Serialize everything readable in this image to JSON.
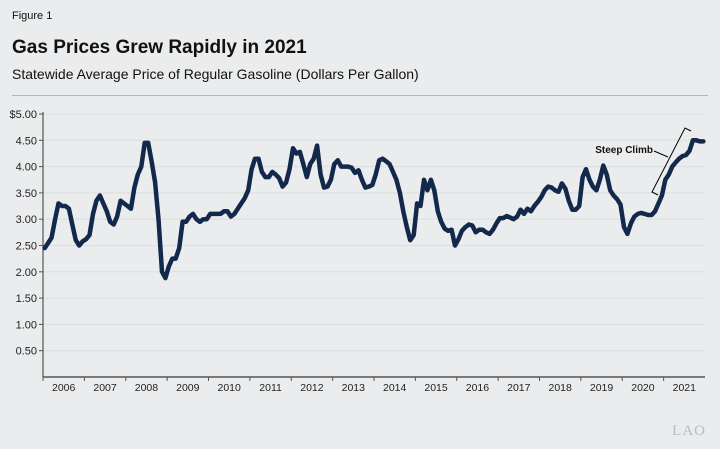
{
  "header": {
    "figure_label": "Figure 1",
    "title": "Gas Prices Grew Rapidly in 2021",
    "subtitle": "Statewide Average Price of Regular Gasoline (Dollars Per Gallon)"
  },
  "logo": "LAO",
  "colors": {
    "line": "#13294b",
    "background": "#ebeced",
    "grid": "#dcdedf",
    "axis": "#555555"
  },
  "chart_data": {
    "type": "line",
    "title": "Gas Prices Grew Rapidly in 2021",
    "subtitle": "Statewide Average Price of Regular Gasoline (Dollars Per Gallon)",
    "xlabel": "",
    "ylabel": "",
    "ylim": [
      0,
      5
    ],
    "y_ticks": [
      0.5,
      1,
      1.5,
      2,
      2.5,
      3,
      3.5,
      4,
      4.5,
      5
    ],
    "y_tick_labels": [
      "0.50",
      "1.00",
      "1.50",
      "2.00",
      "2.50",
      "3.00",
      "3.50",
      "4.00",
      "4.50",
      "$5.00"
    ],
    "x_tick_labels": [
      "2006",
      "2007",
      "2008",
      "2009",
      "2010",
      "2011",
      "2012",
      "2013",
      "2014",
      "2015",
      "2016",
      "2017",
      "2018",
      "2019",
      "2020",
      "2021"
    ],
    "x_range": [
      "2006-01",
      "2021-12"
    ],
    "frequency": "monthly",
    "grid": "horizontal",
    "series": [
      {
        "values": [
          2.45,
          2.55,
          2.65,
          3.0,
          3.3,
          3.25,
          3.25,
          3.2,
          2.9,
          2.6,
          2.5,
          2.58,
          2.62,
          2.7,
          3.1,
          3.35,
          3.45,
          3.3,
          3.15,
          2.95,
          2.9,
          3.05,
          3.35,
          3.3,
          3.25,
          3.2,
          3.6,
          3.85,
          4.0,
          4.45,
          4.45,
          4.1,
          3.7,
          3.0,
          2.0,
          1.88,
          2.1,
          2.25,
          2.25,
          2.45,
          2.95,
          2.95,
          3.05,
          3.1,
          3.0,
          2.95,
          3.0,
          3.0,
          3.1,
          3.1,
          3.1,
          3.1,
          3.15,
          3.15,
          3.05,
          3.1,
          3.2,
          3.3,
          3.4,
          3.55,
          3.95,
          4.15,
          4.15,
          3.9,
          3.8,
          3.8,
          3.9,
          3.85,
          3.78,
          3.62,
          3.7,
          3.95,
          4.35,
          4.25,
          4.28,
          4.05,
          3.8,
          4.05,
          4.15,
          4.4,
          3.85,
          3.6,
          3.62,
          3.75,
          4.05,
          4.12,
          4.0,
          4.0,
          4.0,
          3.98,
          3.88,
          3.93,
          3.75,
          3.6,
          3.62,
          3.65,
          3.85,
          4.12,
          4.15,
          4.1,
          4.05,
          3.9,
          3.75,
          3.5,
          3.15,
          2.85,
          2.6,
          2.7,
          3.3,
          3.25,
          3.75,
          3.55,
          3.75,
          3.55,
          3.15,
          2.95,
          2.82,
          2.78,
          2.8,
          2.5,
          2.62,
          2.78,
          2.85,
          2.9,
          2.88,
          2.75,
          2.8,
          2.8,
          2.75,
          2.72,
          2.8,
          2.92,
          3.02,
          3.02,
          3.06,
          3.03,
          3.0,
          3.05,
          3.18,
          3.1,
          3.2,
          3.15,
          3.25,
          3.33,
          3.42,
          3.55,
          3.62,
          3.6,
          3.55,
          3.52,
          3.68,
          3.58,
          3.35,
          3.18,
          3.18,
          3.25,
          3.8,
          3.95,
          3.75,
          3.62,
          3.55,
          3.75,
          4.02,
          3.85,
          3.55,
          3.45,
          3.38,
          3.28,
          2.85,
          2.72,
          2.92,
          3.05,
          3.1,
          3.12,
          3.1,
          3.08,
          3.08,
          3.15,
          3.3,
          3.45,
          3.75,
          3.85,
          4.0,
          4.08,
          4.15,
          4.2,
          4.22,
          4.3,
          4.5,
          4.5,
          4.48,
          4.48
        ]
      }
    ],
    "annotations": [
      {
        "text": "Steep Climb",
        "type": "bracket",
        "from": "2020-12",
        "to": "2021-12"
      }
    ]
  }
}
